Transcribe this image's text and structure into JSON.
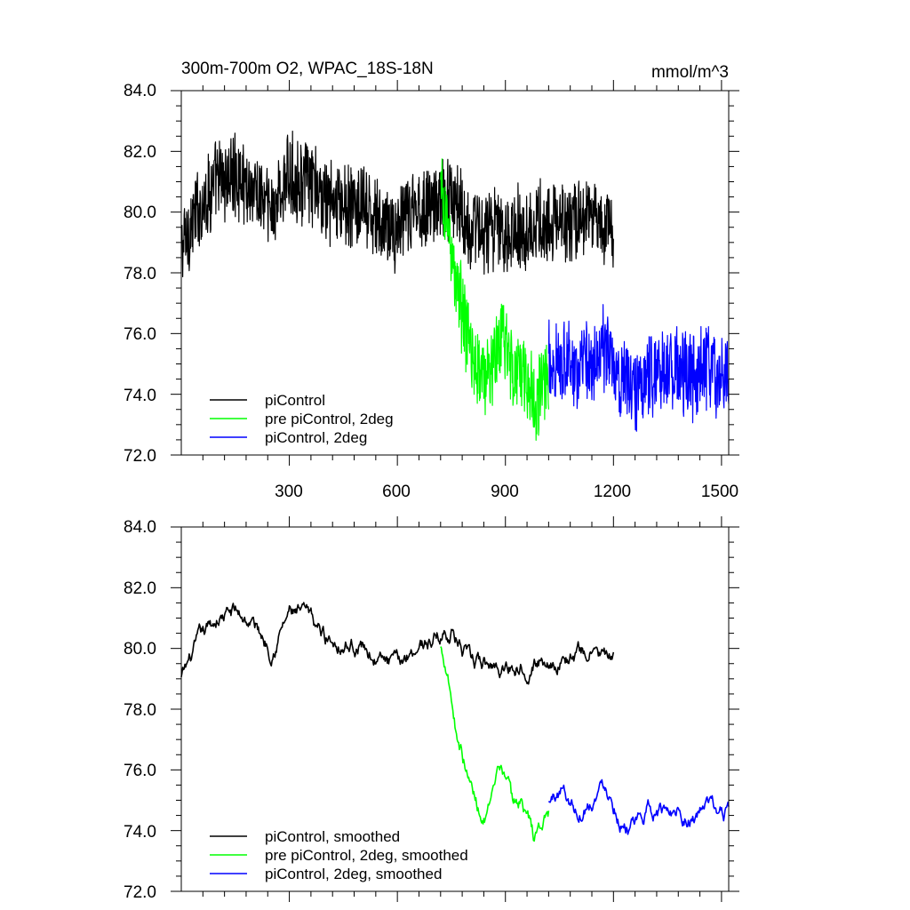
{
  "chart_data": [
    {
      "type": "line",
      "title": "300m-700m O2, WPAC_18S-18N",
      "units": "mmol/m^3",
      "xlim": [
        0,
        1520
      ],
      "ylim": [
        72,
        84
      ],
      "xticks": [
        300,
        600,
        900,
        1200,
        1500
      ],
      "xtick_labels": [
        "300",
        "600",
        "900",
        "1200",
        "1500"
      ],
      "yticks": [
        72,
        74,
        76,
        78,
        80,
        82,
        84
      ],
      "ytick_labels": [
        "72.0",
        "74.0",
        "76.0",
        "78.0",
        "80.0",
        "82.0",
        "84.0"
      ],
      "smoothed": false,
      "series": [
        {
          "name": "piControl",
          "color": "#000000",
          "x": [
            0,
            50,
            100,
            150,
            200,
            250,
            300,
            350,
            400,
            450,
            500,
            550,
            600,
            650,
            700,
            750,
            800,
            850,
            900,
            950,
            1000,
            1050,
            1100,
            1150,
            1200
          ],
          "values": [
            78.8,
            80.2,
            81.0,
            81.2,
            80.8,
            80.0,
            81.2,
            81.0,
            80.4,
            80.2,
            80.1,
            79.6,
            79.4,
            80.1,
            80.3,
            80.6,
            79.5,
            79.4,
            79.4,
            79.5,
            79.6,
            79.6,
            79.8,
            79.9,
            79.3
          ]
        },
        {
          "name": "pre piControl, 2deg",
          "color": "#00ff00",
          "x": [
            720,
            740,
            760,
            780,
            800,
            820,
            840,
            860,
            880,
            900,
            920,
            940,
            960,
            980,
            1000,
            1020
          ],
          "values": [
            80.5,
            79.6,
            77.8,
            76.8,
            75.5,
            74.9,
            74.6,
            74.8,
            75.7,
            75.8,
            74.7,
            75.0,
            74.5,
            73.8,
            74.1,
            74.6
          ]
        },
        {
          "name": "piControl, 2deg",
          "color": "#0000ff",
          "x": [
            1020,
            1060,
            1100,
            1140,
            1180,
            1220,
            1260,
            1300,
            1340,
            1380,
            1420,
            1460,
            1500,
            1520
          ],
          "values": [
            74.9,
            75.3,
            74.7,
            75.1,
            75.5,
            74.6,
            74.2,
            74.7,
            74.6,
            74.8,
            74.5,
            74.8,
            74.6,
            74.6
          ]
        }
      ]
    },
    {
      "type": "line",
      "title": "",
      "units": "",
      "xlim": [
        0,
        1520
      ],
      "ylim": [
        72,
        84
      ],
      "xticks": [
        300,
        600,
        900,
        1200,
        1500
      ],
      "xtick_labels": [
        "",
        "",
        "",
        "",
        ""
      ],
      "yticks": [
        72,
        74,
        76,
        78,
        80,
        82,
        84
      ],
      "ytick_labels": [
        "72.0",
        "74.0",
        "76.0",
        "78.0",
        "80.0",
        "82.0",
        "84.0"
      ],
      "smoothed": true,
      "series": [
        {
          "name": "piControl, smoothed",
          "color": "#000000",
          "x": [
            0,
            50,
            100,
            150,
            200,
            250,
            300,
            350,
            400,
            450,
            500,
            550,
            600,
            650,
            700,
            750,
            800,
            850,
            900,
            950,
            1000,
            1050,
            1100,
            1150,
            1200
          ],
          "values": [
            79.0,
            80.2,
            81.0,
            81.2,
            80.8,
            80.0,
            81.2,
            81.0,
            80.4,
            80.2,
            80.1,
            79.6,
            79.4,
            80.1,
            80.3,
            80.6,
            79.5,
            79.4,
            79.4,
            79.5,
            79.6,
            79.6,
            79.8,
            79.9,
            79.5
          ]
        },
        {
          "name": "pre piControl, 2deg, smoothed",
          "color": "#00ff00",
          "x": [
            720,
            740,
            760,
            780,
            800,
            820,
            840,
            860,
            880,
            900,
            920,
            940,
            960,
            980,
            1000,
            1020
          ],
          "values": [
            80.0,
            79.4,
            77.6,
            76.6,
            75.6,
            74.9,
            74.5,
            74.7,
            75.6,
            75.9,
            74.8,
            75.0,
            74.6,
            73.7,
            74.2,
            74.6
          ]
        },
        {
          "name": "piControl, 2deg, smoothed",
          "color": "#0000ff",
          "x": [
            1020,
            1060,
            1100,
            1140,
            1180,
            1220,
            1260,
            1300,
            1340,
            1380,
            1420,
            1460,
            1500,
            1520
          ],
          "values": [
            74.9,
            75.4,
            74.6,
            75.1,
            75.6,
            74.4,
            74.0,
            74.7,
            74.6,
            74.8,
            74.4,
            74.8,
            74.5,
            74.6
          ]
        }
      ]
    }
  ]
}
